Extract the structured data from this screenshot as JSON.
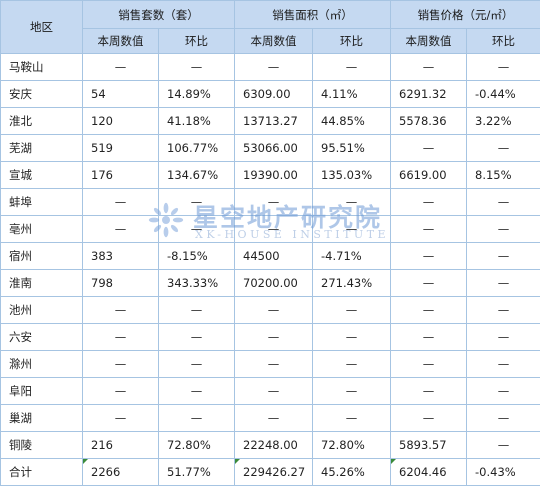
{
  "header": {
    "region": "地区",
    "groups": [
      "销售套数（套）",
      "销售面积（㎡）",
      "销售价格（元/㎡）"
    ],
    "subheaders": [
      "本周数值",
      "环比",
      "本周数值",
      "环比",
      "本周数值",
      "环比"
    ]
  },
  "rows": [
    {
      "region": "马鞍山",
      "cells": [
        "—",
        "—",
        "—",
        "—",
        "—",
        "—"
      ]
    },
    {
      "region": "安庆",
      "cells": [
        "54",
        "14.89%",
        "6309.00",
        "4.11%",
        "6291.32",
        "-0.44%"
      ]
    },
    {
      "region": "淮北",
      "cells": [
        "120",
        "41.18%",
        "13713.27",
        "44.85%",
        "5578.36",
        "3.22%"
      ]
    },
    {
      "region": "芜湖",
      "cells": [
        "519",
        "106.77%",
        "53066.00",
        "95.51%",
        "—",
        "—"
      ]
    },
    {
      "region": "宣城",
      "cells": [
        "176",
        "134.67%",
        "19390.00",
        "135.03%",
        "6619.00",
        "8.15%"
      ]
    },
    {
      "region": "蚌埠",
      "cells": [
        "—",
        "—",
        "—",
        "—",
        "—",
        "—"
      ]
    },
    {
      "region": "亳州",
      "cells": [
        "—",
        "—",
        "—",
        "—",
        "—",
        "—"
      ]
    },
    {
      "region": "宿州",
      "cells": [
        "383",
        "-8.15%",
        "44500",
        "-4.71%",
        "—",
        "—"
      ]
    },
    {
      "region": "淮南",
      "cells": [
        "798",
        "343.33%",
        "70200.00",
        "271.43%",
        "—",
        "—"
      ]
    },
    {
      "region": "池州",
      "cells": [
        "—",
        "—",
        "—",
        "—",
        "—",
        "—"
      ]
    },
    {
      "region": "六安",
      "cells": [
        "—",
        "—",
        "—",
        "—",
        "—",
        "—"
      ]
    },
    {
      "region": "滁州",
      "cells": [
        "—",
        "—",
        "—",
        "—",
        "—",
        "—"
      ]
    },
    {
      "region": "阜阳",
      "cells": [
        "—",
        "—",
        "—",
        "—",
        "—",
        "—"
      ]
    },
    {
      "region": "巢湖",
      "cells": [
        "—",
        "—",
        "—",
        "—",
        "—",
        "—"
      ]
    },
    {
      "region": "铜陵",
      "cells": [
        "216",
        "72.80%",
        "22248.00",
        "72.80%",
        "5893.57",
        "—"
      ]
    },
    {
      "region": "合计",
      "cells": [
        "2266",
        "51.77%",
        "229426.27",
        "45.26%",
        "6204.46",
        "-0.43%"
      ]
    }
  ],
  "watermark": {
    "cn": "星空地产研究院",
    "en": "XK-HOUSE INSTITUTE",
    "logo": "xk-house-logo"
  },
  "colors": {
    "header_bg": "#c5d9f1",
    "grid": "#a6c4e2",
    "cell_marker": "#3a8a3a"
  }
}
